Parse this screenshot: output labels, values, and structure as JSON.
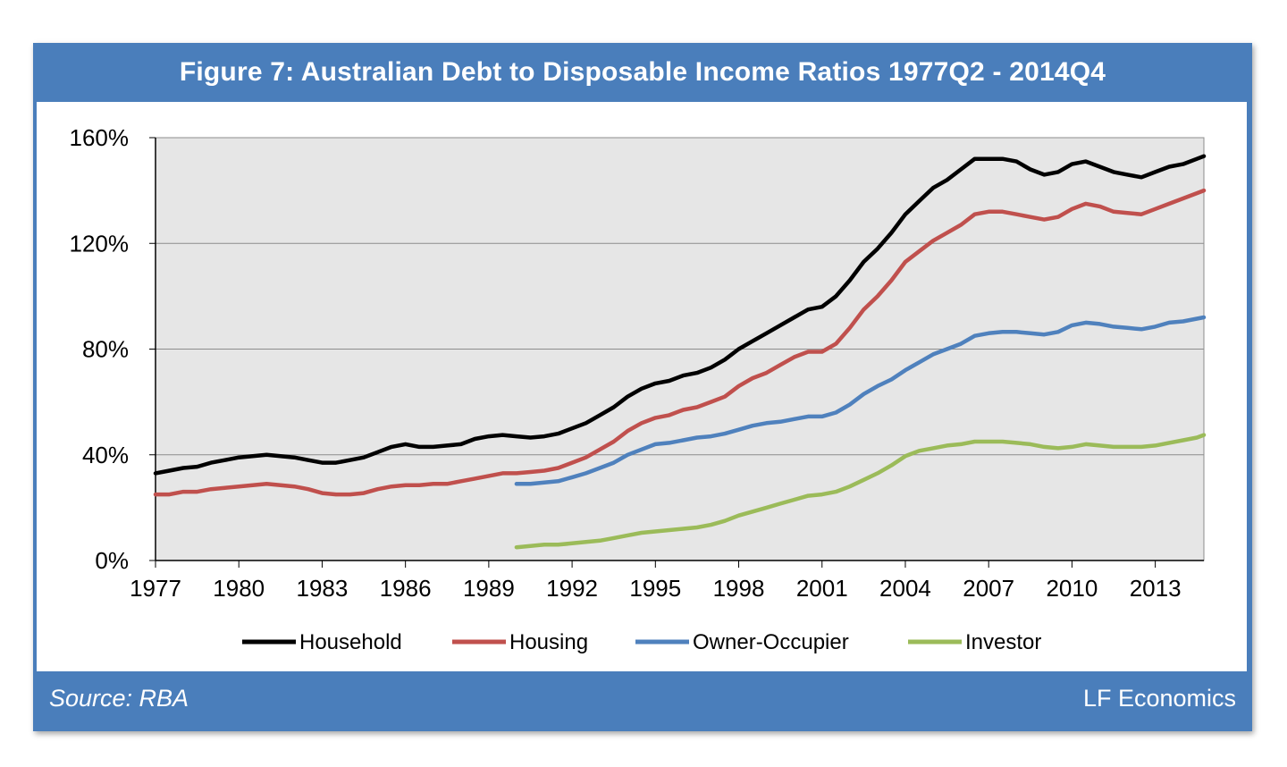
{
  "figure": {
    "title": "Figure 7: Australian Debt to Disposable Income Ratios 1977Q2 - 2014Q4",
    "source": "Source: RBA",
    "brand": "LF Economics",
    "frame_color": "#4a7ebb"
  },
  "chart_data": {
    "type": "line",
    "title": "Figure 7: Australian Debt to Disposable Income Ratios 1977Q2 - 2014Q4",
    "xlabel": "",
    "ylabel": "",
    "xlim": [
      1977,
      2014.75
    ],
    "ylim": [
      0,
      160
    ],
    "x_ticks": [
      "1977",
      "1980",
      "1983",
      "1986",
      "1989",
      "1992",
      "1995",
      "1998",
      "2001",
      "2004",
      "2007",
      "2010",
      "2013"
    ],
    "y_ticks": [
      "0%",
      "40%",
      "80%",
      "120%",
      "160%"
    ],
    "grid": "horizontal",
    "legend_position": "bottom",
    "series": [
      {
        "name": "Household",
        "color": "#000000",
        "points": [
          [
            1977.0,
            33
          ],
          [
            1977.5,
            34
          ],
          [
            1978.0,
            35
          ],
          [
            1978.5,
            35.5
          ],
          [
            1979.0,
            37
          ],
          [
            1979.5,
            38
          ],
          [
            1980.0,
            39
          ],
          [
            1980.5,
            39.5
          ],
          [
            1981.0,
            40
          ],
          [
            1981.5,
            39.5
          ],
          [
            1982.0,
            39
          ],
          [
            1982.5,
            38
          ],
          [
            1983.0,
            37
          ],
          [
            1983.5,
            37
          ],
          [
            1984.0,
            38
          ],
          [
            1984.5,
            39
          ],
          [
            1985.0,
            41
          ],
          [
            1985.5,
            43
          ],
          [
            1986.0,
            44
          ],
          [
            1986.5,
            43
          ],
          [
            1987.0,
            43
          ],
          [
            1987.5,
            43.5
          ],
          [
            1988.0,
            44
          ],
          [
            1988.5,
            46
          ],
          [
            1989.0,
            47
          ],
          [
            1989.5,
            47.5
          ],
          [
            1990.0,
            47
          ],
          [
            1990.5,
            46.5
          ],
          [
            1991.0,
            47
          ],
          [
            1991.5,
            48
          ],
          [
            1992.0,
            50
          ],
          [
            1992.5,
            52
          ],
          [
            1993.0,
            55
          ],
          [
            1993.5,
            58
          ],
          [
            1994.0,
            62
          ],
          [
            1994.5,
            65
          ],
          [
            1995.0,
            67
          ],
          [
            1995.5,
            68
          ],
          [
            1996.0,
            70
          ],
          [
            1996.5,
            71
          ],
          [
            1997.0,
            73
          ],
          [
            1997.5,
            76
          ],
          [
            1998.0,
            80
          ],
          [
            1998.5,
            83
          ],
          [
            1999.0,
            86
          ],
          [
            1999.5,
            89
          ],
          [
            2000.0,
            92
          ],
          [
            2000.5,
            95
          ],
          [
            2001.0,
            96
          ],
          [
            2001.5,
            100
          ],
          [
            2002.0,
            106
          ],
          [
            2002.5,
            113
          ],
          [
            2003.0,
            118
          ],
          [
            2003.5,
            124
          ],
          [
            2004.0,
            131
          ],
          [
            2004.5,
            136
          ],
          [
            2005.0,
            141
          ],
          [
            2005.5,
            144
          ],
          [
            2006.0,
            148
          ],
          [
            2006.5,
            152
          ],
          [
            2007.0,
            152
          ],
          [
            2007.5,
            152
          ],
          [
            2008.0,
            151
          ],
          [
            2008.5,
            148
          ],
          [
            2009.0,
            146
          ],
          [
            2009.5,
            147
          ],
          [
            2010.0,
            150
          ],
          [
            2010.5,
            151
          ],
          [
            2011.0,
            149
          ],
          [
            2011.5,
            147
          ],
          [
            2012.0,
            146
          ],
          [
            2012.5,
            145
          ],
          [
            2013.0,
            147
          ],
          [
            2013.5,
            149
          ],
          [
            2014.0,
            150
          ],
          [
            2014.5,
            152
          ],
          [
            2014.75,
            153
          ]
        ]
      },
      {
        "name": "Housing",
        "color": "#c0504d",
        "points": [
          [
            1977.0,
            25
          ],
          [
            1977.5,
            25
          ],
          [
            1978.0,
            26
          ],
          [
            1978.5,
            26
          ],
          [
            1979.0,
            27
          ],
          [
            1979.5,
            27.5
          ],
          [
            1980.0,
            28
          ],
          [
            1980.5,
            28.5
          ],
          [
            1981.0,
            29
          ],
          [
            1981.5,
            28.5
          ],
          [
            1982.0,
            28
          ],
          [
            1982.5,
            27
          ],
          [
            1983.0,
            25.5
          ],
          [
            1983.5,
            25
          ],
          [
            1984.0,
            25
          ],
          [
            1984.5,
            25.5
          ],
          [
            1985.0,
            27
          ],
          [
            1985.5,
            28
          ],
          [
            1986.0,
            28.5
          ],
          [
            1986.5,
            28.5
          ],
          [
            1987.0,
            29
          ],
          [
            1987.5,
            29
          ],
          [
            1988.0,
            30
          ],
          [
            1988.5,
            31
          ],
          [
            1989.0,
            32
          ],
          [
            1989.5,
            33
          ],
          [
            1990.0,
            33
          ],
          [
            1990.5,
            33.5
          ],
          [
            1991.0,
            34
          ],
          [
            1991.5,
            35
          ],
          [
            1992.0,
            37
          ],
          [
            1992.5,
            39
          ],
          [
            1993.0,
            42
          ],
          [
            1993.5,
            45
          ],
          [
            1994.0,
            49
          ],
          [
            1994.5,
            52
          ],
          [
            1995.0,
            54
          ],
          [
            1995.5,
            55
          ],
          [
            1996.0,
            57
          ],
          [
            1996.5,
            58
          ],
          [
            1997.0,
            60
          ],
          [
            1997.5,
            62
          ],
          [
            1998.0,
            66
          ],
          [
            1998.5,
            69
          ],
          [
            1999.0,
            71
          ],
          [
            1999.5,
            74
          ],
          [
            2000.0,
            77
          ],
          [
            2000.5,
            79
          ],
          [
            2001.0,
            79
          ],
          [
            2001.5,
            82
          ],
          [
            2002.0,
            88
          ],
          [
            2002.5,
            95
          ],
          [
            2003.0,
            100
          ],
          [
            2003.5,
            106
          ],
          [
            2004.0,
            113
          ],
          [
            2004.5,
            117
          ],
          [
            2005.0,
            121
          ],
          [
            2005.5,
            124
          ],
          [
            2006.0,
            127
          ],
          [
            2006.5,
            131
          ],
          [
            2007.0,
            132
          ],
          [
            2007.5,
            132
          ],
          [
            2008.0,
            131
          ],
          [
            2008.5,
            130
          ],
          [
            2009.0,
            129
          ],
          [
            2009.5,
            130
          ],
          [
            2010.0,
            133
          ],
          [
            2010.5,
            135
          ],
          [
            2011.0,
            134
          ],
          [
            2011.5,
            132
          ],
          [
            2012.0,
            131.5
          ],
          [
            2012.5,
            131
          ],
          [
            2013.0,
            133
          ],
          [
            2013.5,
            135
          ],
          [
            2014.0,
            137
          ],
          [
            2014.5,
            139
          ],
          [
            2014.75,
            140
          ]
        ]
      },
      {
        "name": "Owner-Occupier",
        "color": "#4f81bd",
        "points": [
          [
            1990.0,
            29
          ],
          [
            1990.5,
            29
          ],
          [
            1991.0,
            29.5
          ],
          [
            1991.5,
            30
          ],
          [
            1992.0,
            31.5
          ],
          [
            1992.5,
            33
          ],
          [
            1993.0,
            35
          ],
          [
            1993.5,
            37
          ],
          [
            1994.0,
            40
          ],
          [
            1994.5,
            42
          ],
          [
            1995.0,
            44
          ],
          [
            1995.5,
            44.5
          ],
          [
            1996.0,
            45.5
          ],
          [
            1996.5,
            46.5
          ],
          [
            1997.0,
            47
          ],
          [
            1997.5,
            48
          ],
          [
            1998.0,
            49.5
          ],
          [
            1998.5,
            51
          ],
          [
            1999.0,
            52
          ],
          [
            1999.5,
            52.5
          ],
          [
            2000.0,
            53.5
          ],
          [
            2000.5,
            54.5
          ],
          [
            2001.0,
            54.5
          ],
          [
            2001.5,
            56
          ],
          [
            2002.0,
            59
          ],
          [
            2002.5,
            63
          ],
          [
            2003.0,
            66
          ],
          [
            2003.5,
            68.5
          ],
          [
            2004.0,
            72
          ],
          [
            2004.5,
            75
          ],
          [
            2005.0,
            78
          ],
          [
            2005.5,
            80
          ],
          [
            2006.0,
            82
          ],
          [
            2006.5,
            85
          ],
          [
            2007.0,
            86
          ],
          [
            2007.5,
            86.5
          ],
          [
            2008.0,
            86.5
          ],
          [
            2008.5,
            86
          ],
          [
            2009.0,
            85.5
          ],
          [
            2009.5,
            86.5
          ],
          [
            2010.0,
            89
          ],
          [
            2010.5,
            90
          ],
          [
            2011.0,
            89.5
          ],
          [
            2011.5,
            88.5
          ],
          [
            2012.0,
            88
          ],
          [
            2012.5,
            87.5
          ],
          [
            2013.0,
            88.5
          ],
          [
            2013.5,
            90
          ],
          [
            2014.0,
            90.5
          ],
          [
            2014.5,
            91.5
          ],
          [
            2014.75,
            92
          ]
        ]
      },
      {
        "name": "Investor",
        "color": "#9bbb59",
        "points": [
          [
            1990.0,
            5
          ],
          [
            1990.5,
            5.5
          ],
          [
            1991.0,
            6
          ],
          [
            1991.5,
            6
          ],
          [
            1992.0,
            6.5
          ],
          [
            1992.5,
            7
          ],
          [
            1993.0,
            7.5
          ],
          [
            1993.5,
            8.5
          ],
          [
            1994.0,
            9.5
          ],
          [
            1994.5,
            10.5
          ],
          [
            1995.0,
            11
          ],
          [
            1995.5,
            11.5
          ],
          [
            1996.0,
            12
          ],
          [
            1996.5,
            12.5
          ],
          [
            1997.0,
            13.5
          ],
          [
            1997.5,
            15
          ],
          [
            1998.0,
            17
          ],
          [
            1998.5,
            18.5
          ],
          [
            1999.0,
            20
          ],
          [
            1999.5,
            21.5
          ],
          [
            2000.0,
            23
          ],
          [
            2000.5,
            24.5
          ],
          [
            2001.0,
            25
          ],
          [
            2001.5,
            26
          ],
          [
            2002.0,
            28
          ],
          [
            2002.5,
            30.5
          ],
          [
            2003.0,
            33
          ],
          [
            2003.5,
            36
          ],
          [
            2004.0,
            39.5
          ],
          [
            2004.5,
            41.5
          ],
          [
            2005.0,
            42.5
          ],
          [
            2005.5,
            43.5
          ],
          [
            2006.0,
            44
          ],
          [
            2006.5,
            45
          ],
          [
            2007.0,
            45
          ],
          [
            2007.5,
            45
          ],
          [
            2008.0,
            44.5
          ],
          [
            2008.5,
            44
          ],
          [
            2009.0,
            43
          ],
          [
            2009.5,
            42.5
          ],
          [
            2010.0,
            43
          ],
          [
            2010.5,
            44
          ],
          [
            2011.0,
            43.5
          ],
          [
            2011.5,
            43
          ],
          [
            2012.0,
            43
          ],
          [
            2012.5,
            43
          ],
          [
            2013.0,
            43.5
          ],
          [
            2013.5,
            44.5
          ],
          [
            2014.0,
            45.5
          ],
          [
            2014.5,
            46.5
          ],
          [
            2014.75,
            47.5
          ]
        ]
      }
    ]
  }
}
